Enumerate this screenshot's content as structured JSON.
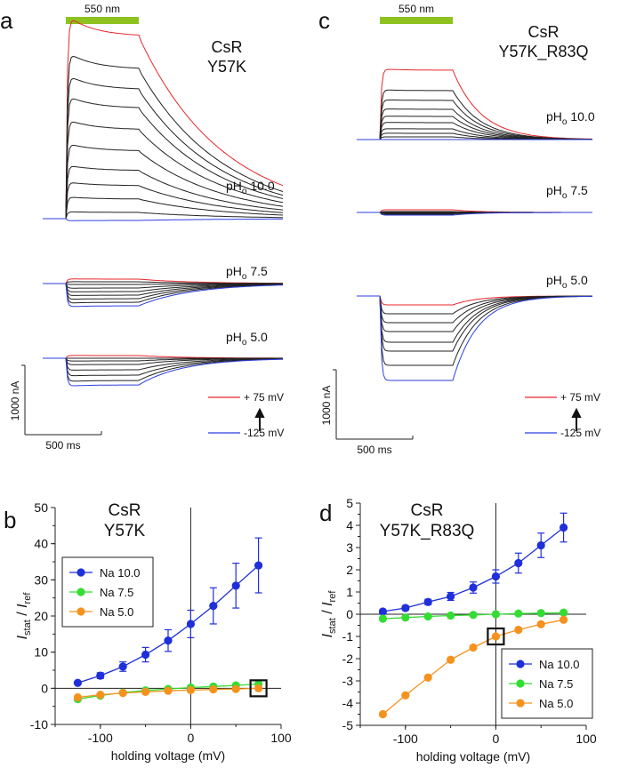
{
  "top_panels": [
    {
      "letter": "a",
      "stimulus_label": "550 nm",
      "construct_line1": "CsR",
      "construct_line2": "Y57K",
      "ph_labels": [
        "pH",
        "o",
        " 10.0",
        " 7.5",
        " 5.0"
      ],
      "scale_current": "1000 nA",
      "scale_time": "500 ms",
      "legend_top": "+ 75 mV",
      "legend_bottom": "-125 mV"
    },
    {
      "letter": "c",
      "stimulus_label": "550 nm",
      "construct_line1": "CsR",
      "construct_line2": "Y57K_R83Q",
      "scale_current": "1000 nA",
      "scale_time": "500 ms",
      "legend_top": "+ 75 mV",
      "legend_bottom": "-125 mV"
    }
  ],
  "colors": {
    "trace_red": "#e8262b",
    "trace_black": "#222222",
    "trace_blue": "#2b3ee0",
    "light_bar": "#8dc21f",
    "na10": "#1f2fd9",
    "na75": "#33dd33",
    "na50": "#f5921e"
  },
  "chart_data": [
    {
      "type": "line",
      "panel": "b",
      "title_line1": "CsR",
      "title_line2": "Y57K",
      "ylabel_main": "I",
      "ylabel_sub1": "stat",
      "ylabel_sep": " / ",
      "ylabel_main2": "I",
      "ylabel_sub2": "ref",
      "xlabel": "holding voltage (mV)",
      "xlim": [
        -150,
        100
      ],
      "ylim": [
        -10,
        50
      ],
      "xticks": [
        -100,
        0,
        100
      ],
      "yticks": [
        -10,
        0,
        10,
        20,
        30,
        40,
        50
      ],
      "legend_position": "left",
      "x": [
        -125,
        -100,
        -75,
        -50,
        -25,
        0,
        25,
        50,
        75
      ],
      "series": [
        {
          "name": "Na 10.0",
          "color": "#1f2fd9",
          "values": [
            1.5,
            3.5,
            6.0,
            9.3,
            13.2,
            17.8,
            22.8,
            28.4,
            34.0
          ],
          "err": [
            0.6,
            0.8,
            1.3,
            2.0,
            3.0,
            3.8,
            5.0,
            6.2,
            7.6
          ]
        },
        {
          "name": "Na 7.5",
          "color": "#33dd33",
          "values": [
            -3.0,
            -2.0,
            -1.2,
            -0.6,
            -0.2,
            0.2,
            0.5,
            0.8,
            1.2
          ],
          "err": [
            0.3,
            0.3,
            0.3,
            0.3,
            0.3,
            0.3,
            0.3,
            0.4,
            0.5
          ]
        },
        {
          "name": "Na 5.0",
          "color": "#f5921e",
          "values": [
            -2.5,
            -1.8,
            -1.3,
            -1.0,
            -0.7,
            -0.5,
            -0.3,
            -0.2,
            0.0
          ],
          "err": [
            0.3,
            0.3,
            0.3,
            0.3,
            0.3,
            0.3,
            0.3,
            0.3,
            0.3
          ]
        }
      ],
      "ref_point": {
        "x": 75,
        "y": 0
      }
    },
    {
      "type": "line",
      "panel": "d",
      "title_line1": "CsR",
      "title_line2": "Y57K_R83Q",
      "ylabel_main": "I",
      "ylabel_sub1": "stat",
      "ylabel_sep": " / ",
      "ylabel_main2": "I",
      "ylabel_sub2": "ref",
      "xlabel": "holding voltage (mV)",
      "xlim": [
        -150,
        100
      ],
      "ylim": [
        -5,
        5
      ],
      "xticks": [
        -100,
        0,
        100
      ],
      "yticks": [
        -5,
        -4,
        -3,
        -2,
        -1,
        0,
        1,
        2,
        3,
        4,
        5
      ],
      "legend_position": "bottom-right",
      "x": [
        -125,
        -100,
        -75,
        -50,
        -25,
        0,
        25,
        50,
        75
      ],
      "series": [
        {
          "name": "Na 10.0",
          "color": "#1f2fd9",
          "values": [
            0.12,
            0.28,
            0.55,
            0.8,
            1.2,
            1.7,
            2.3,
            3.1,
            3.9
          ],
          "err": [
            0.08,
            0.1,
            0.12,
            0.18,
            0.25,
            0.3,
            0.45,
            0.55,
            0.65
          ]
        },
        {
          "name": "Na 7.5",
          "color": "#33dd33",
          "values": [
            -0.2,
            -0.15,
            -0.1,
            -0.06,
            -0.03,
            0.0,
            0.03,
            0.05,
            0.07
          ],
          "err": [
            0.05,
            0.05,
            0.05,
            0.05,
            0.05,
            0.05,
            0.05,
            0.05,
            0.05
          ]
        },
        {
          "name": "Na 5.0",
          "color": "#f5921e",
          "values": [
            -4.5,
            -3.65,
            -2.85,
            -2.05,
            -1.5,
            -1.0,
            -0.7,
            -0.45,
            -0.25
          ],
          "err": [
            0.05,
            0.05,
            0.05,
            0.05,
            0.05,
            0.05,
            0.05,
            0.05,
            0.05
          ]
        }
      ],
      "ref_point": {
        "x": 0,
        "y": -1
      }
    }
  ]
}
